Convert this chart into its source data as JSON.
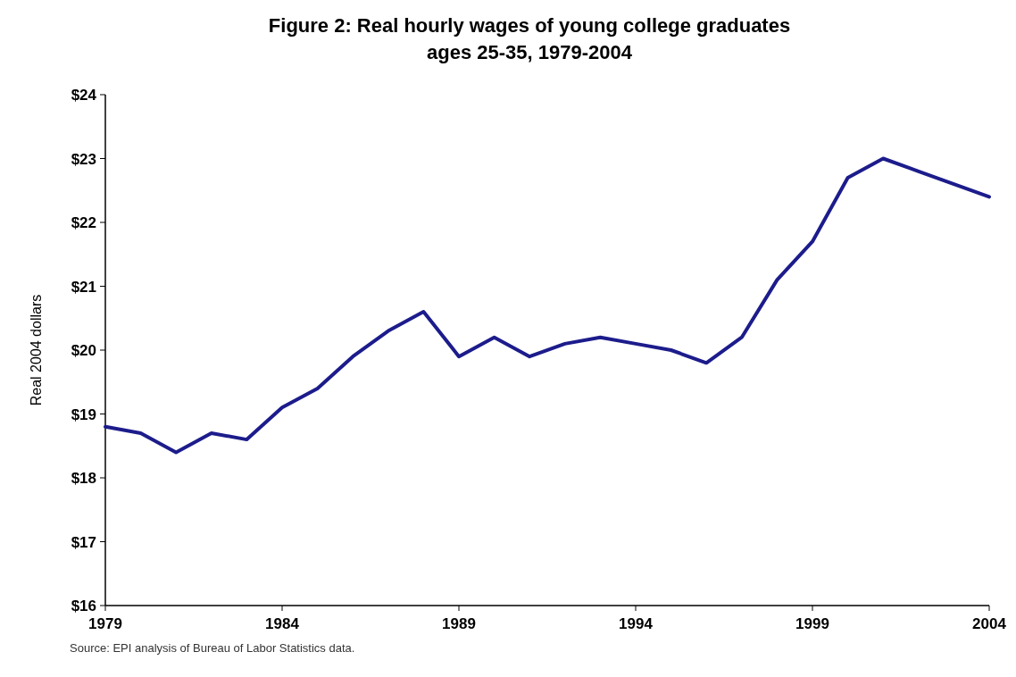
{
  "chart_data": {
    "type": "line",
    "title": "Figure 2: Real hourly wages of young college graduates\nages 25-35, 1979-2004",
    "ylabel": "Real 2004 dollars",
    "x": [
      1979,
      1980,
      1981,
      1982,
      1983,
      1984,
      1985,
      1986,
      1987,
      1988,
      1989,
      1990,
      1991,
      1992,
      1993,
      1994,
      1995,
      1996,
      1997,
      1998,
      1999,
      2000,
      2001,
      2002,
      2003,
      2004
    ],
    "series": [
      {
        "color": "#1c1c8c",
        "values": [
          18.8,
          18.7,
          18.4,
          18.7,
          18.6,
          19.1,
          19.4,
          19.9,
          20.3,
          20.6,
          19.9,
          20.2,
          19.9,
          20.1,
          20.2,
          20.1,
          20.0,
          19.8,
          20.2,
          21.1,
          21.7,
          22.7,
          23.0,
          22.8,
          22.6,
          22.4
        ]
      }
    ],
    "xlim": [
      1979,
      2004
    ],
    "xticks": [
      1979,
      1984,
      1989,
      1994,
      1999,
      2004
    ],
    "ylim": [
      16,
      24
    ],
    "yticks": [
      {
        "value": 16,
        "label": "$16"
      },
      {
        "value": 17,
        "label": "$17"
      },
      {
        "value": 18,
        "label": "$18"
      },
      {
        "value": 19,
        "label": "$19"
      },
      {
        "value": 20,
        "label": "$20"
      },
      {
        "value": 21,
        "label": "$21"
      },
      {
        "value": 22,
        "label": "$22"
      },
      {
        "value": 23,
        "label": "$23"
      },
      {
        "value": 24,
        "label": "$24"
      }
    ],
    "grid": false,
    "marker": "none",
    "line_style": "solid",
    "annotations": [
      "Source:  EPI analysis of Bureau of Labor Statistics data."
    ]
  }
}
